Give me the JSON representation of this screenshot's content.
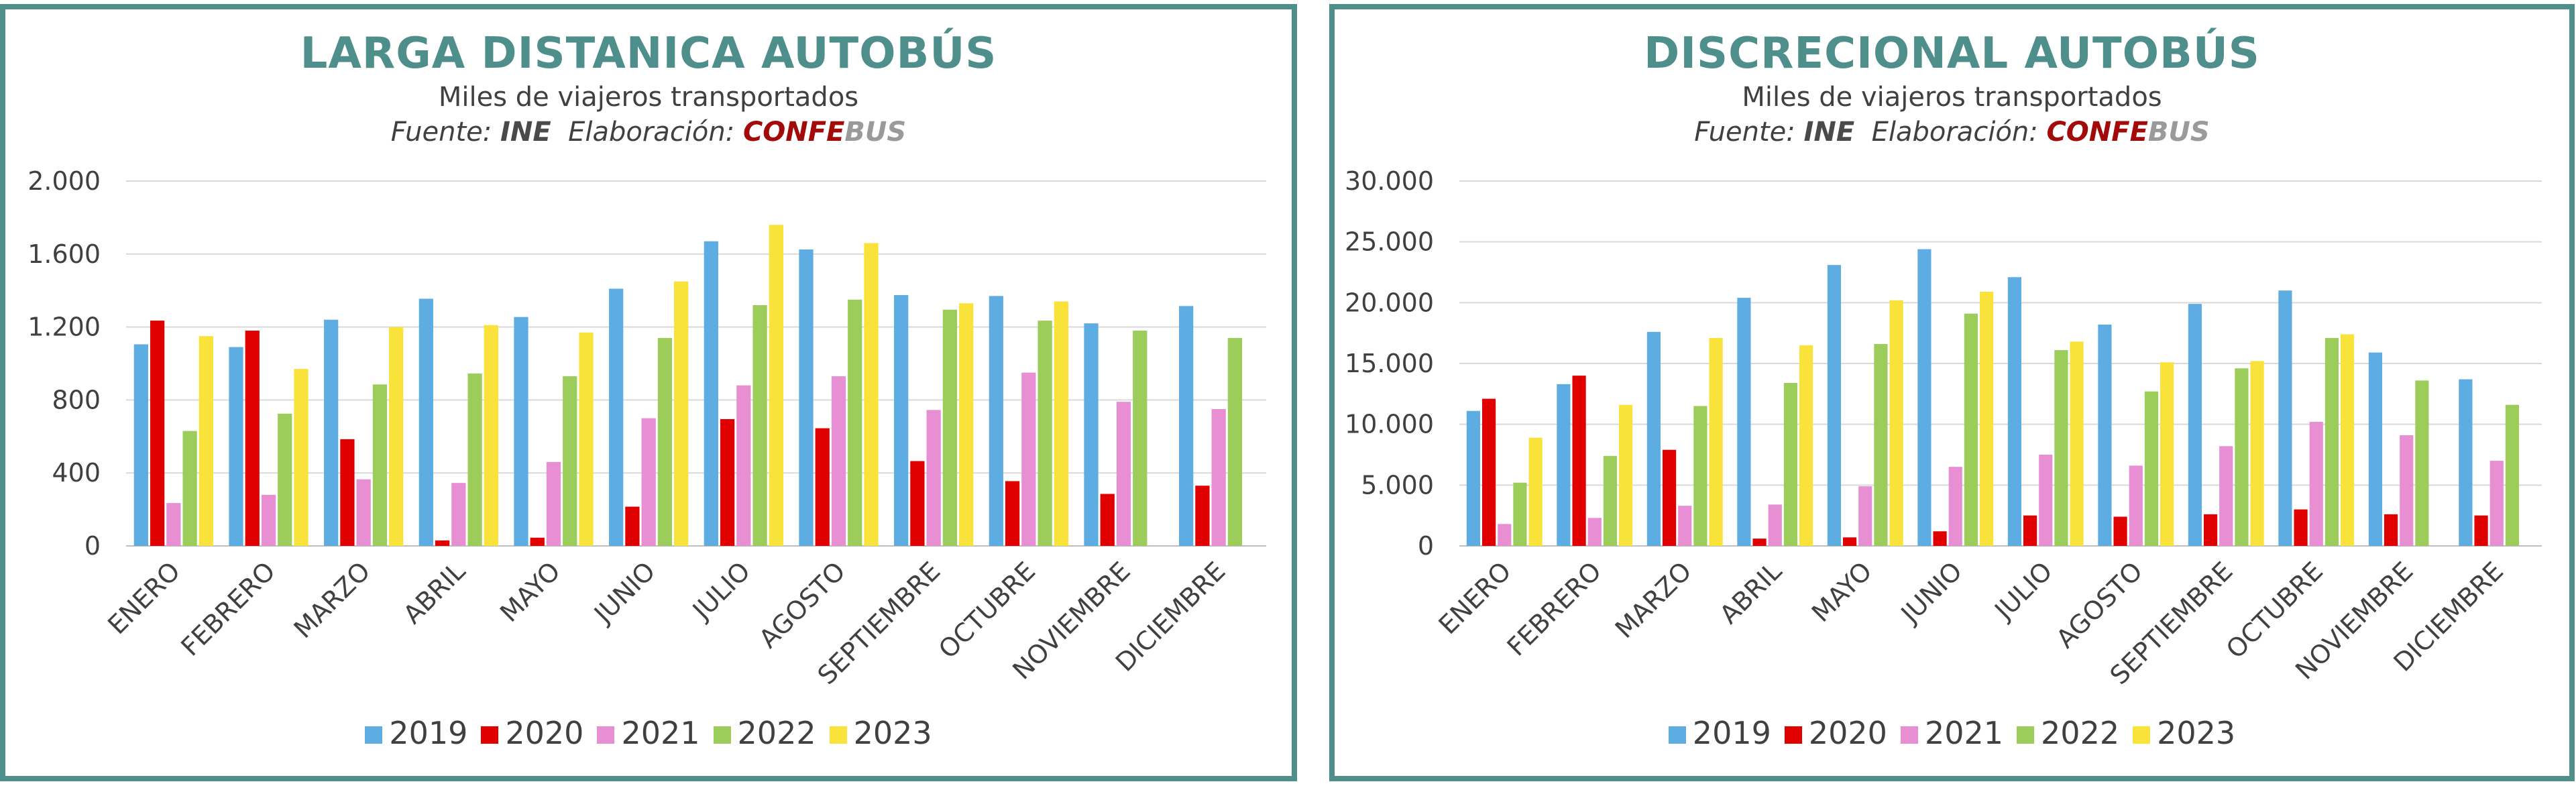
{
  "chart_data": [
    {
      "type": "bar",
      "title": "LARGA DISTANICA AUTOBÚS",
      "subtitle": "Miles de viajeros transportados",
      "source": {
        "fuente_label": "Fuente:",
        "fuente_value": "INE",
        "elaboracion_label": "Elaboración:",
        "brand_part1": "CONFE",
        "brand_part2": "BUS"
      },
      "categories": [
        "ENERO",
        "FEBRERO",
        "MARZO",
        "ABRIL",
        "MAYO",
        "JUNIO",
        "JULIO",
        "AGOSTO",
        "SEPTIEMBRE",
        "OCTUBRE",
        "NOVIEMBRE",
        "DICIEMBRE"
      ],
      "series": [
        {
          "name": "2019",
          "color": "#5dade2",
          "values": [
            1105,
            1090,
            1240,
            1355,
            1255,
            1410,
            1670,
            1625,
            1375,
            1370,
            1220,
            1315
          ]
        },
        {
          "name": "2020",
          "color": "#e00000",
          "values": [
            1235,
            1180,
            585,
            30,
            45,
            215,
            695,
            645,
            465,
            355,
            285,
            330
          ]
        },
        {
          "name": "2021",
          "color": "#e88fd3",
          "values": [
            235,
            280,
            365,
            345,
            460,
            700,
            880,
            930,
            745,
            950,
            790,
            750
          ]
        },
        {
          "name": "2022",
          "color": "#9ccc5a",
          "values": [
            630,
            725,
            885,
            945,
            930,
            1140,
            1320,
            1350,
            1295,
            1235,
            1180,
            1140
          ]
        },
        {
          "name": "2023",
          "color": "#f9e23a",
          "values": [
            1150,
            970,
            1200,
            1210,
            1170,
            1450,
            1760,
            1660,
            1330,
            1340,
            null,
            null
          ]
        }
      ],
      "ylim": [
        0,
        2000
      ],
      "yticks": [
        0,
        400,
        800,
        1200,
        1600,
        2000
      ],
      "ytick_labels": [
        "0",
        "400",
        "800",
        "1.200",
        "1.600",
        "2.000"
      ],
      "xlabel": "",
      "ylabel": "",
      "grid": true,
      "legend_position": "bottom"
    },
    {
      "type": "bar",
      "title": "DISCRECIONAL AUTOBÚS",
      "subtitle": "Miles de viajeros transportados",
      "source": {
        "fuente_label": "Fuente:",
        "fuente_value": "INE",
        "elaboracion_label": "Elaboración:",
        "brand_part1": "CONFE",
        "brand_part2": "BUS"
      },
      "categories": [
        "ENERO",
        "FEBRERO",
        "MARZO",
        "ABRIL",
        "MAYO",
        "JUNIO",
        "JULIO",
        "AGOSTO",
        "SEPTIEMBRE",
        "OCTUBRE",
        "NOVIEMBRE",
        "DICIEMBRE"
      ],
      "series": [
        {
          "name": "2019",
          "color": "#5dade2",
          "values": [
            11100,
            13300,
            17600,
            20400,
            23100,
            24400,
            22100,
            18200,
            19900,
            21000,
            15900,
            13700
          ]
        },
        {
          "name": "2020",
          "color": "#e00000",
          "values": [
            12100,
            14000,
            7900,
            600,
            700,
            1200,
            2500,
            2400,
            2600,
            3000,
            2600,
            2500
          ]
        },
        {
          "name": "2021",
          "color": "#e88fd3",
          "values": [
            1800,
            2300,
            3300,
            3400,
            4900,
            6500,
            7500,
            6600,
            8200,
            10200,
            9100,
            7000
          ]
        },
        {
          "name": "2022",
          "color": "#9ccc5a",
          "values": [
            5200,
            7400,
            11500,
            13400,
            16600,
            19100,
            16100,
            12700,
            14600,
            17100,
            13600,
            11600
          ]
        },
        {
          "name": "2023",
          "color": "#f9e23a",
          "values": [
            8900,
            11600,
            17100,
            16500,
            20200,
            20900,
            16800,
            15100,
            15200,
            17400,
            null,
            null
          ]
        }
      ],
      "ylim": [
        0,
        30000
      ],
      "yticks": [
        0,
        5000,
        10000,
        15000,
        20000,
        25000,
        30000
      ],
      "ytick_labels": [
        "0",
        "5.000",
        "10.000",
        "15.000",
        "20.000",
        "25.000",
        "30.000"
      ],
      "xlabel": "",
      "ylabel": "",
      "grid": true,
      "legend_position": "bottom"
    }
  ]
}
